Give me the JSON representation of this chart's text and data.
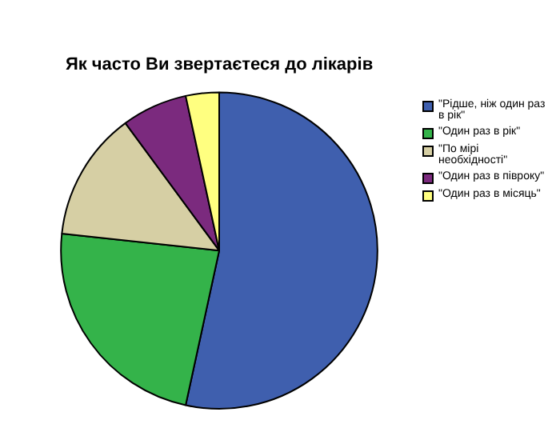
{
  "chart_data": {
    "type": "pie",
    "title": "Як часто Ви звертаєтеся до лікарів",
    "categories": [
      "\"Рідше, ніж один раз в рік\"",
      "\"Один раз в рік\"",
      "\"По мірі необхідності\"",
      "\"Один раз в півроку\"",
      "\"Один раз в місяць\""
    ],
    "values": [
      53.4,
      23.3,
      13.2,
      6.7,
      3.4
    ],
    "colors": [
      "#3f5fae",
      "#34b34a",
      "#d6cfa4",
      "#7b2a7e",
      "#ffff80"
    ],
    "legend": "top right"
  }
}
